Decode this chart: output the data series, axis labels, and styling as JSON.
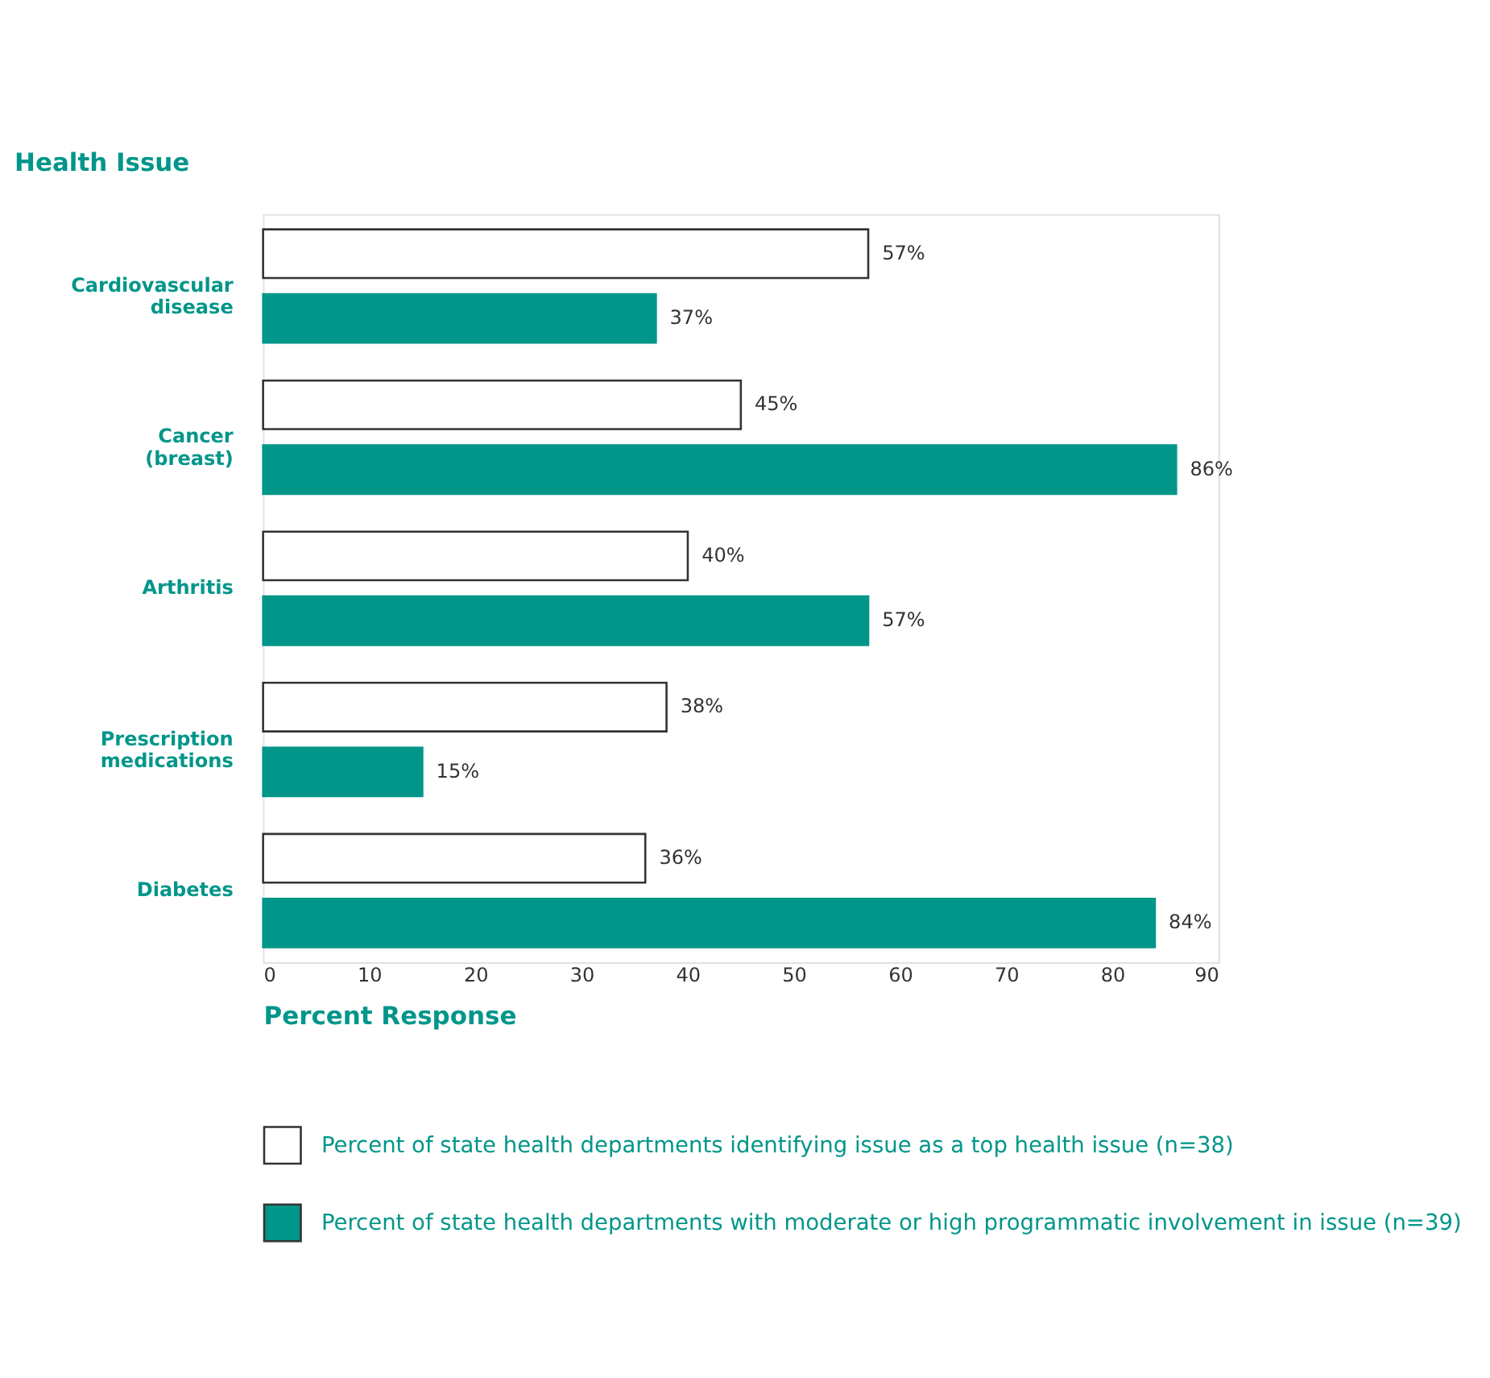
{
  "chart_data": {
    "type": "bar",
    "orientation": "horizontal",
    "ylabel": "Health Issue",
    "xlabel": "Percent Response",
    "categories": [
      "Cardiovascular disease",
      "Cancer (breast)",
      "Arthritis",
      "Prescription medications",
      "Diabetes"
    ],
    "series": [
      {
        "name": "Percent of state health departments identifying issue as a top health issue (n=38)",
        "color": "#ffffff",
        "values": [
          57,
          45,
          40,
          38,
          36
        ],
        "value_labels": [
          "57%",
          "45%",
          "40%",
          "38%",
          "36%"
        ]
      },
      {
        "name": "Percent of state health departments with moderate or high programmatic involvement in issue (n=39)",
        "color": "#00968a",
        "values": [
          37,
          86,
          57,
          15,
          84
        ],
        "value_labels": [
          "37%",
          "86%",
          "57%",
          "15%",
          "84%"
        ]
      }
    ],
    "xlim": [
      0,
      90
    ],
    "xticks": [
      0,
      10,
      20,
      30,
      40,
      50,
      60,
      70,
      80,
      90
    ],
    "grid": false,
    "legend": "bottom"
  }
}
